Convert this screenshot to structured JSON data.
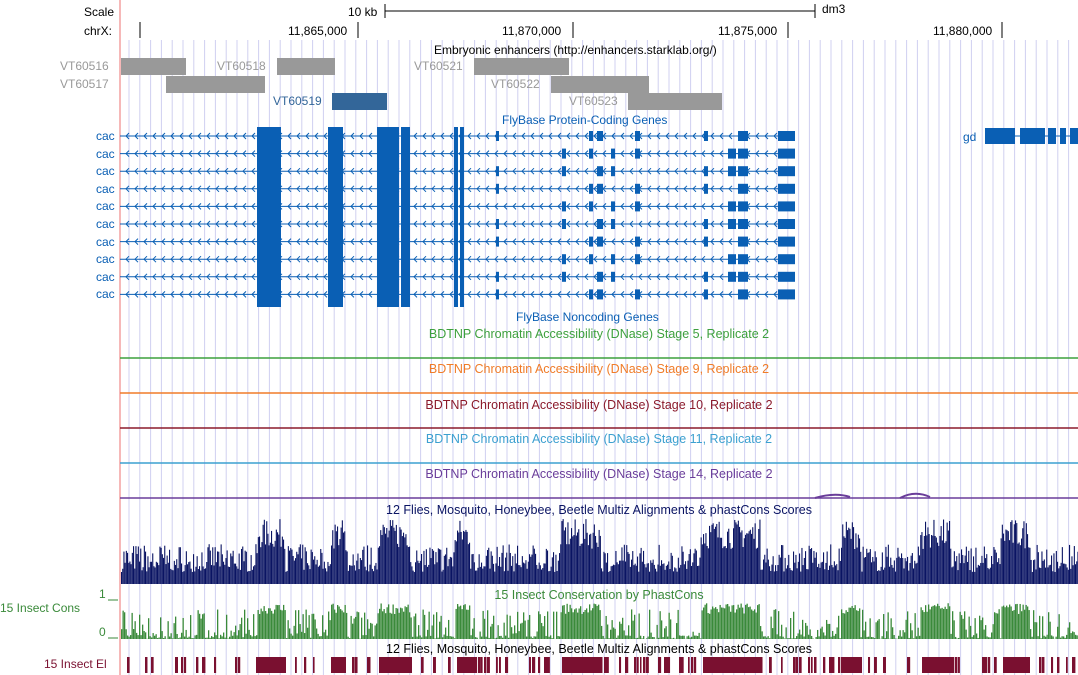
{
  "scale": {
    "label": "Scale",
    "length": "10 kb",
    "assembly": "dm3"
  },
  "chrom": {
    "label": "chrX:"
  },
  "ruler_ticks": [
    "11,865,000",
    "11,870,000",
    "11,875,000",
    "11,880,000"
  ],
  "tracks": {
    "enhancers": {
      "title": "Embryonic enhancers (http://enhancers.starklab.org/)",
      "items": [
        "VT60516",
        "VT60517",
        "VT60518",
        "VT60519",
        "VT60521",
        "VT60522",
        "VT60523"
      ]
    },
    "protein_coding": {
      "title": "FlyBase Protein-Coding Genes",
      "gene_rows": [
        "cac",
        "cac",
        "cac",
        "cac",
        "cac",
        "cac",
        "cac",
        "cac",
        "cac",
        "cac"
      ],
      "right_gene": "gd"
    },
    "noncoding": {
      "title": "FlyBase Noncoding Genes"
    },
    "dnase": [
      {
        "title": "BDTNP Chromatin Accessibility (DNase) Stage 5, Replicate 2",
        "color": "#3da03d"
      },
      {
        "title": "BDTNP Chromatin Accessibility (DNase) Stage 9, Replicate 2",
        "color": "#f07c28"
      },
      {
        "title": "BDTNP Chromatin Accessibility (DNase) Stage 10, Replicate 2",
        "color": "#8b1a2b"
      },
      {
        "title": "BDTNP Chromatin Accessibility (DNase) Stage 11, Replicate 2",
        "color": "#3ca0d0"
      },
      {
        "title": "BDTNP Chromatin Accessibility (DNase) Stage 14, Replicate 2",
        "color": "#6a3d9a"
      }
    ],
    "multiz": {
      "title": "12 Flies, Mosquito, Honeybee, Beetle Multiz Alignments & phastCons Scores",
      "color": "#0a1463"
    },
    "phastcons": {
      "title": "15 Insect Conservation by PhastCons",
      "side_label": "15 Insect Cons",
      "y_max": "1",
      "y_min": "0",
      "color": "#3a8a3a"
    },
    "elements": {
      "title": "12 Flies, Mosquito, Honeybee, Beetle Multiz Alignments & phastCons Scores",
      "side_label": "15 Insect El",
      "color": "#7a1030"
    }
  },
  "colors": {
    "gene": "#0a5fb4",
    "enhancer_gray": "#999999",
    "enhancer_selected": "#336699",
    "guide": "#d0d0f0",
    "left_border": "#f3a0a0"
  }
}
